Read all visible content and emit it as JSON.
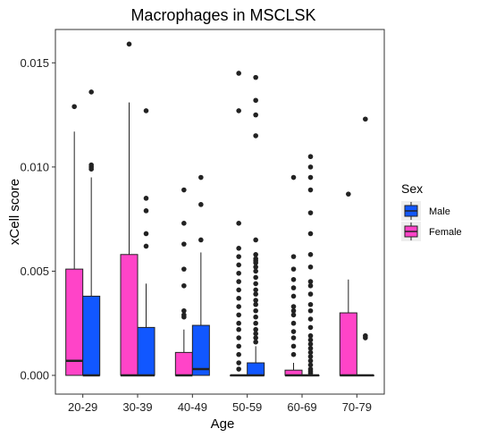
{
  "chart_data": {
    "type": "boxplot",
    "title": "Macrophages in MSCLSK",
    "xlabel": "Age",
    "ylabel": "xCell score",
    "categories": [
      "20-29",
      "30-39",
      "40-49",
      "50-59",
      "60-69",
      "70-79"
    ],
    "yticks": [
      "0.000",
      "0.005",
      "0.010",
      "0.015"
    ],
    "ylim": [
      -0.0009,
      0.0166
    ],
    "grid": false,
    "legend": {
      "title": "Sex",
      "placement": "right",
      "entries": [
        {
          "name": "Male",
          "color": "#1157FF"
        },
        {
          "name": "Female",
          "color": "#FF44C8"
        }
      ]
    },
    "series": [
      {
        "name": "Female",
        "color": "#FF44C8",
        "boxes": [
          {
            "q1": 0.0,
            "median": 0.0007,
            "q3": 0.0051,
            "lower": 0.0,
            "upper": 0.0117,
            "outliers": [
              0.0129
            ]
          },
          {
            "q1": 0.0,
            "median": 0.0,
            "q3": 0.0058,
            "lower": 0.0,
            "upper": 0.0131,
            "outliers": [
              0.0159
            ]
          },
          {
            "q1": 0.0,
            "median": 0.0,
            "q3": 0.0011,
            "lower": 0.0,
            "upper": 0.0022,
            "outliers": [
              0.0089,
              0.0073,
              0.0063,
              0.0051,
              0.0043,
              0.0031,
              0.0029,
              0.0028
            ]
          },
          {
            "q1": 0.0,
            "median": 0.0,
            "q3": 0.0,
            "lower": 0.0,
            "upper": 0.0,
            "outliers": [
              0.0145,
              0.0127,
              0.0073,
              0.0061,
              0.0057,
              0.0053,
              0.0049,
              0.0045,
              0.0041,
              0.0037,
              0.0033,
              0.0029,
              0.0025,
              0.0022,
              0.0018,
              0.0014,
              0.001,
              0.0006,
              0.0003
            ]
          },
          {
            "q1": 0.0,
            "median": 0.0,
            "q3": 0.00025,
            "lower": 0.0,
            "upper": 0.0006,
            "outliers": [
              0.0095,
              0.0057,
              0.0051,
              0.0046,
              0.0042,
              0.0038,
              0.0033,
              0.0031,
              0.0029,
              0.0025,
              0.0021,
              0.0018,
              0.0014,
              0.001
            ]
          },
          {
            "q1": 0.0,
            "median": 0.0,
            "q3": 0.003,
            "lower": 0.0,
            "upper": 0.0046,
            "outliers": [
              0.0087
            ]
          }
        ]
      },
      {
        "name": "Male",
        "color": "#1157FF",
        "boxes": [
          {
            "q1": 0.0,
            "median": 0.0,
            "q3": 0.0038,
            "lower": 0.0,
            "upper": 0.0095,
            "outliers": [
              0.0136,
              0.0101,
              0.01,
              0.0099
            ]
          },
          {
            "q1": 0.0,
            "median": 0.0,
            "q3": 0.0023,
            "lower": 0.0,
            "upper": 0.0044,
            "outliers": [
              0.0127,
              0.0085,
              0.0079,
              0.0068,
              0.0062
            ]
          },
          {
            "q1": 0.0,
            "median": 0.0003,
            "q3": 0.0024,
            "lower": 0.0,
            "upper": 0.0059,
            "outliers": [
              0.0095,
              0.0082,
              0.0065
            ]
          },
          {
            "q1": 0.0,
            "median": 0.0,
            "q3": 0.0006,
            "lower": 0.0,
            "upper": 0.0014,
            "outliers": [
              0.0143,
              0.0132,
              0.0125,
              0.0115,
              0.0065,
              0.0058,
              0.0056,
              0.0055,
              0.0054,
              0.0052,
              0.005,
              0.0047,
              0.0044,
              0.0041,
              0.0039,
              0.0036,
              0.0034,
              0.0031,
              0.0028,
              0.0025,
              0.0022,
              0.002,
              0.0018,
              0.0016
            ]
          },
          {
            "q1": 0.0,
            "median": 0.0,
            "q3": 0.0,
            "lower": 0.0,
            "upper": 0.0,
            "outliers": [
              0.0105,
              0.01,
              0.0095,
              0.0089,
              0.0078,
              0.0068,
              0.0058,
              0.0052,
              0.0045,
              0.0043,
              0.0039,
              0.0034,
              0.0031,
              0.0027,
              0.0023,
              0.0019,
              0.0017,
              0.0015,
              0.0013,
              0.0011,
              0.0009,
              0.0007,
              0.0005,
              0.0003,
              0.0002,
              0.0001
            ]
          },
          {
            "q1": 0.0,
            "median": 0.0,
            "q3": 0.0,
            "lower": 0.0,
            "upper": 0.0,
            "outliers": [
              0.0123,
              0.0019,
              0.0018
            ]
          }
        ]
      }
    ]
  }
}
